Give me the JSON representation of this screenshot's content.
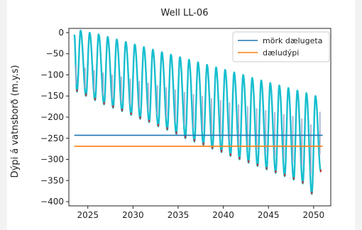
{
  "chart_data": {
    "type": "line",
    "title": "Well LL-06",
    "xlabel": "",
    "ylabel": "Dýpi á vatnsborð (m.y.s)",
    "xlim": [
      2022.9,
      2051.9
    ],
    "ylim": [
      -410,
      10
    ],
    "xticks": [
      2025,
      2030,
      2035,
      2040,
      2045,
      2050
    ],
    "yticks": [
      0,
      -50,
      -100,
      -150,
      -200,
      -250,
      -300,
      -350,
      -400
    ],
    "grid": false,
    "legend_position": "top-right",
    "series": [
      {
        "name": "mörk dælugeta",
        "color": "#1f77b4",
        "type": "hline",
        "y": -243,
        "x_range": [
          2023.5,
          2051
        ]
      },
      {
        "name": "dæludýpi",
        "color": "#ff7f0e",
        "type": "hline",
        "y": -269,
        "x_range": [
          2023.5,
          2051
        ]
      }
    ],
    "envelope": {
      "color_main": "#17becf",
      "color_mid": "#9ea7c8",
      "color_low": "#d62728",
      "x_start": 2023.5,
      "x_end": 2051,
      "cycles_per_year": 1,
      "peaks": [
        {
          "x": 2024.2,
          "y": 5
        },
        {
          "x": 2025.2,
          "y": 0
        },
        {
          "x": 2026.2,
          "y": -4
        },
        {
          "x": 2027.2,
          "y": -10
        },
        {
          "x": 2028.2,
          "y": -16
        },
        {
          "x": 2029.2,
          "y": -22
        },
        {
          "x": 2030.2,
          "y": -28
        },
        {
          "x": 2031.2,
          "y": -34
        },
        {
          "x": 2032.2,
          "y": -40
        },
        {
          "x": 2033.2,
          "y": -46
        },
        {
          "x": 2034.2,
          "y": -52
        },
        {
          "x": 2035.2,
          "y": -58
        },
        {
          "x": 2036.2,
          "y": -64
        },
        {
          "x": 2037.2,
          "y": -70
        },
        {
          "x": 2038.2,
          "y": -76
        },
        {
          "x": 2039.2,
          "y": -82
        },
        {
          "x": 2040.2,
          "y": -88
        },
        {
          "x": 2041.2,
          "y": -94
        },
        {
          "x": 2042.2,
          "y": -100
        },
        {
          "x": 2043.2,
          "y": -107
        },
        {
          "x": 2044.2,
          "y": -113
        },
        {
          "x": 2045.2,
          "y": -119
        },
        {
          "x": 2046.2,
          "y": -125
        },
        {
          "x": 2047.2,
          "y": -131
        },
        {
          "x": 2048.2,
          "y": -137
        },
        {
          "x": 2049.2,
          "y": -143
        },
        {
          "x": 2050.2,
          "y": -150
        }
      ],
      "troughs": [
        {
          "x": 2023.8,
          "y": -140
        },
        {
          "x": 2024.8,
          "y": -150
        },
        {
          "x": 2025.8,
          "y": -160
        },
        {
          "x": 2026.8,
          "y": -170
        },
        {
          "x": 2027.8,
          "y": -178
        },
        {
          "x": 2028.8,
          "y": -186
        },
        {
          "x": 2029.8,
          "y": -195
        },
        {
          "x": 2030.8,
          "y": -204
        },
        {
          "x": 2031.8,
          "y": -212
        },
        {
          "x": 2032.8,
          "y": -222
        },
        {
          "x": 2033.8,
          "y": -230
        },
        {
          "x": 2034.8,
          "y": -240
        },
        {
          "x": 2035.8,
          "y": -250
        },
        {
          "x": 2036.8,
          "y": -258
        },
        {
          "x": 2037.8,
          "y": -266
        },
        {
          "x": 2038.8,
          "y": -275
        },
        {
          "x": 2039.8,
          "y": -283
        },
        {
          "x": 2040.8,
          "y": -292
        },
        {
          "x": 2041.8,
          "y": -300
        },
        {
          "x": 2042.8,
          "y": -308
        },
        {
          "x": 2043.8,
          "y": -316
        },
        {
          "x": 2044.8,
          "y": -324
        },
        {
          "x": 2045.8,
          "y": -332
        },
        {
          "x": 2046.8,
          "y": -340
        },
        {
          "x": 2047.8,
          "y": -348
        },
        {
          "x": 2048.8,
          "y": -357
        },
        {
          "x": 2049.8,
          "y": -382
        },
        {
          "x": 2050.8,
          "y": -330
        }
      ]
    }
  }
}
